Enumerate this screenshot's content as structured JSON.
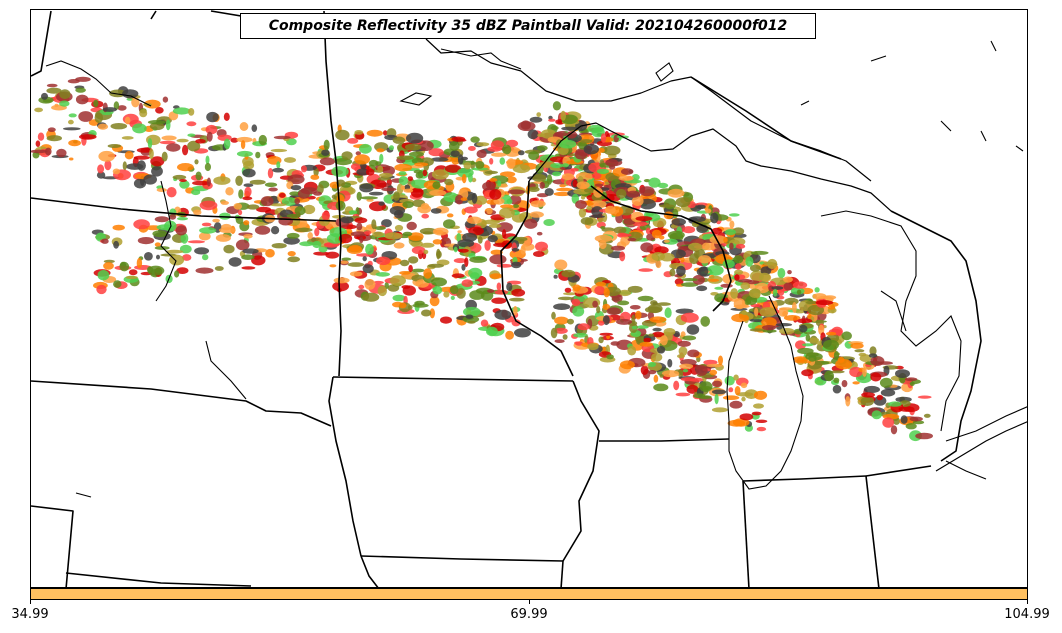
{
  "title": "Composite Reflectivity 35 dBZ Paintball Valid: 202104260000f012",
  "colorbar": {
    "color": "#ffc060",
    "ticks": [
      "34.99",
      "69.99",
      "104.99"
    ]
  },
  "paintball_colors": [
    "#ff7f00",
    "#d40000",
    "#ff4040",
    "#4fd04f",
    "#5a8a1a",
    "#808020",
    "#a03030",
    "#404040",
    "#ffa040",
    "#b0a030"
  ],
  "chart_data": {
    "type": "map",
    "title": "Composite Reflectivity 35 dBZ Paintball Valid: 202104260000f012",
    "colorbar_range": [
      34.99,
      104.99
    ],
    "colorbar_ticks": [
      34.99,
      69.99,
      104.99
    ]
  }
}
